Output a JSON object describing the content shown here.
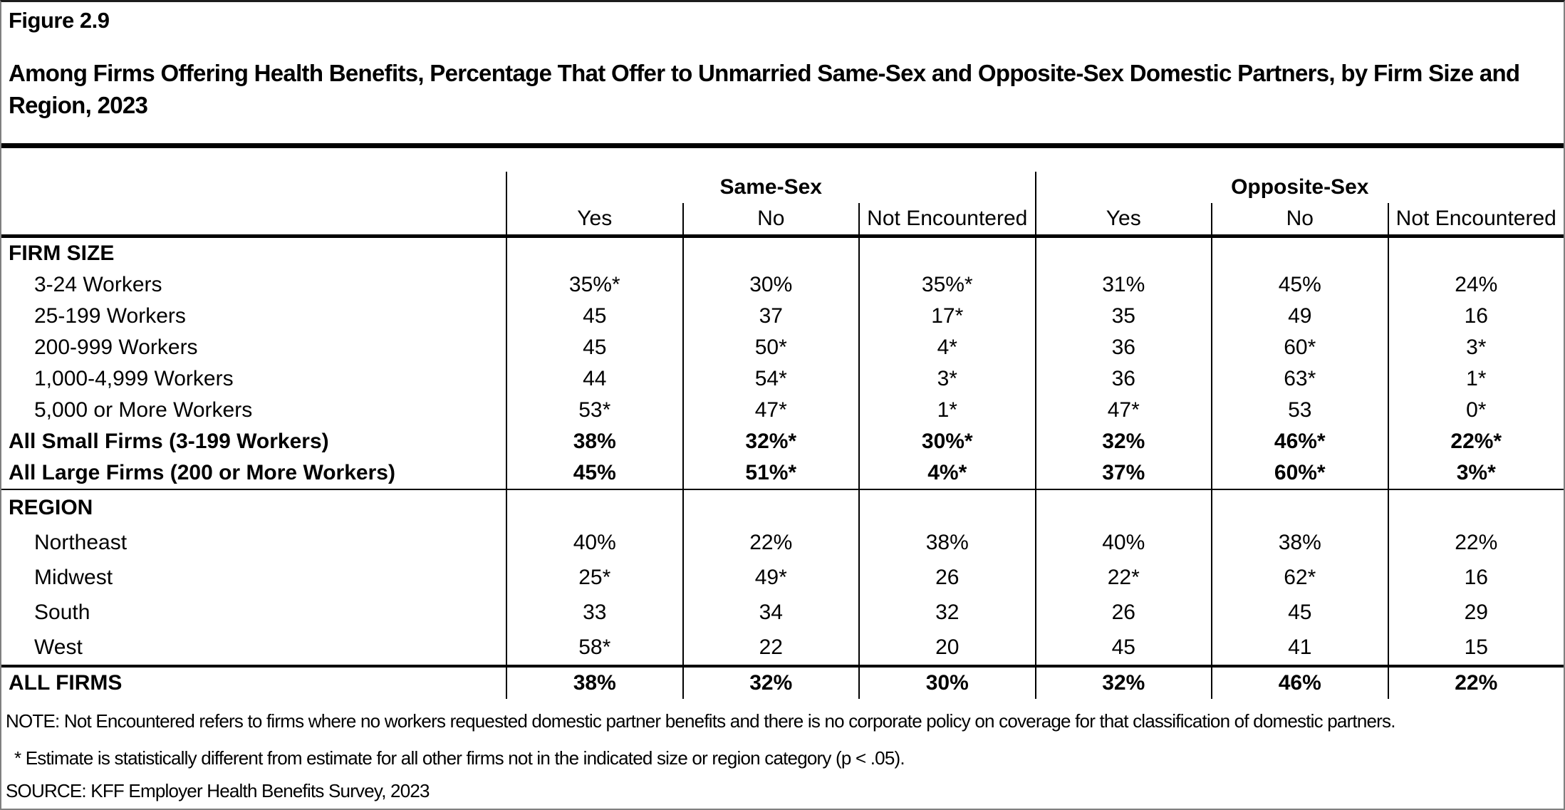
{
  "figure": {
    "label": "Figure 2.9",
    "title": "Among Firms Offering Health Benefits, Percentage That Offer to Unmarried Same-Sex and Opposite-Sex Domestic Partners, by Firm Size and Region, 2023"
  },
  "chart_data": {
    "type": "table",
    "title": "Among Firms Offering Health Benefits, Percentage That Offer to Unmarried Same-Sex and Opposite-Sex Domestic Partners, by Firm Size and Region, 2023",
    "column_groups": [
      {
        "label": "Same-Sex",
        "span": 3
      },
      {
        "label": "Opposite-Sex",
        "span": 3
      }
    ],
    "columns": [
      "Yes",
      "No",
      "Not Encountered",
      "Yes",
      "No",
      "Not Encountered"
    ],
    "sections": [
      {
        "header": "FIRM SIZE",
        "rows": [
          {
            "label": "3-24 Workers",
            "bold": false,
            "values": [
              "35%*",
              "30%",
              "35%*",
              "31%",
              "45%",
              "24%"
            ]
          },
          {
            "label": "25-199 Workers",
            "bold": false,
            "values": [
              "45",
              "37",
              "17*",
              "35",
              "49",
              "16"
            ]
          },
          {
            "label": "200-999 Workers",
            "bold": false,
            "values": [
              "45",
              "50*",
              "4*",
              "36",
              "60*",
              "3*"
            ]
          },
          {
            "label": "1,000-4,999 Workers",
            "bold": false,
            "values": [
              "44",
              "54*",
              "3*",
              "36",
              "63*",
              "1*"
            ]
          },
          {
            "label": "5,000 or More Workers",
            "bold": false,
            "values": [
              "53*",
              "47*",
              "1*",
              "47*",
              "53",
              "0*"
            ]
          },
          {
            "label": "All Small Firms (3-199 Workers)",
            "bold": true,
            "values": [
              "38%",
              "32%*",
              "30%*",
              "32%",
              "46%*",
              "22%*"
            ]
          },
          {
            "label": "All Large Firms (200 or More Workers)",
            "bold": true,
            "values": [
              "45%",
              "51%*",
              "4%*",
              "37%",
              "60%*",
              "3%*"
            ]
          }
        ]
      },
      {
        "header": "REGION",
        "rows": [
          {
            "label": "Northeast",
            "bold": false,
            "values": [
              "40%",
              "22%",
              "38%",
              "40%",
              "38%",
              "22%"
            ]
          },
          {
            "label": "Midwest",
            "bold": false,
            "values": [
              "25*",
              "49*",
              "26",
              "22*",
              "62*",
              "16"
            ]
          },
          {
            "label": "South",
            "bold": false,
            "values": [
              "33",
              "34",
              "32",
              "26",
              "45",
              "29"
            ]
          },
          {
            "label": "West",
            "bold": false,
            "values": [
              "58*",
              "22",
              "20",
              "45",
              "41",
              "15"
            ]
          }
        ]
      }
    ],
    "total_row": {
      "label": "ALL FIRMS",
      "bold": true,
      "values": [
        "38%",
        "32%",
        "30%",
        "32%",
        "46%",
        "22%"
      ]
    }
  },
  "notes": {
    "note": "NOTE: Not Encountered refers to firms where no workers requested domestic partner benefits and there is no corporate policy on coverage for that classification of domestic partners.",
    "asterisk": "* Estimate is statistically different from estimate for all other firms not in the indicated size or region category (p < .05).",
    "source": "SOURCE: KFF Employer Health Benefits Survey, 2023"
  }
}
